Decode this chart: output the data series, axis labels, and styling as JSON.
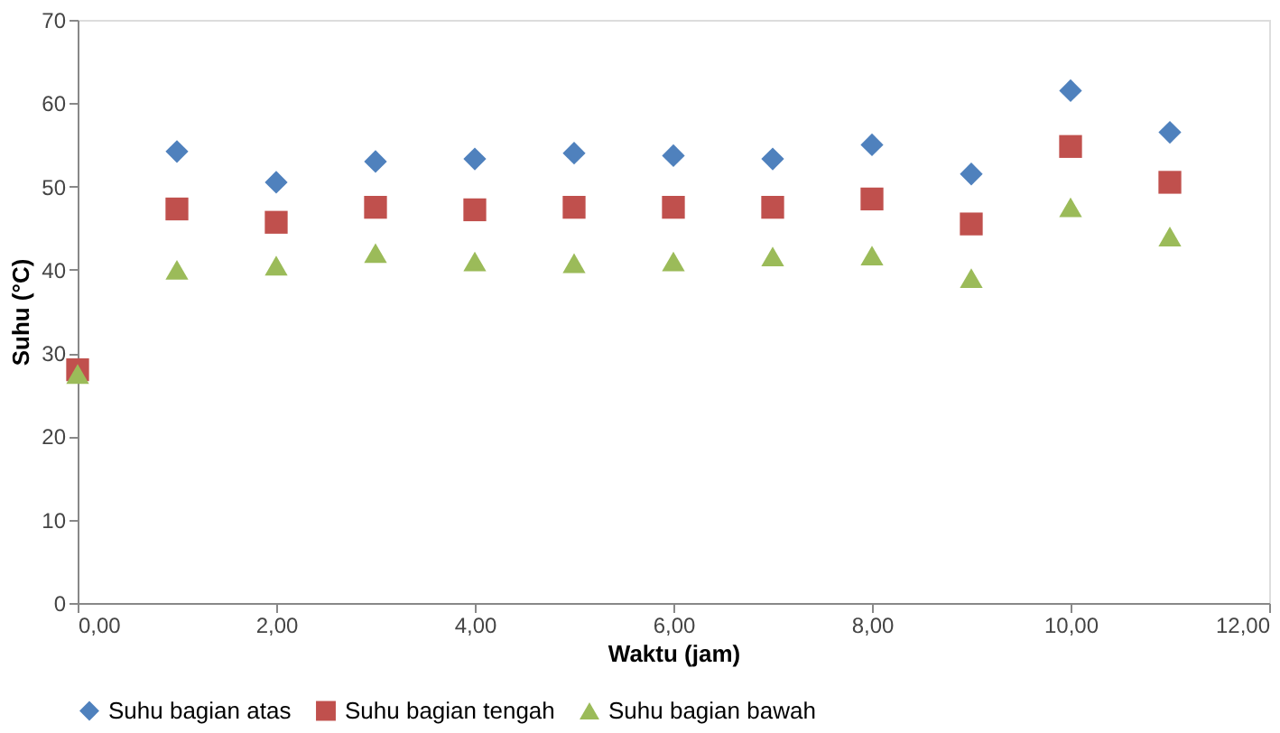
{
  "chart_data": {
    "type": "scatter",
    "xlabel": "Waktu (jam)",
    "ylabel": "Suhu (°C)",
    "x": [
      0,
      1,
      2,
      3,
      4,
      5,
      6,
      7,
      8,
      9,
      10,
      11
    ],
    "series": [
      {
        "name": "Suhu bagian atas",
        "color": "#4f81bd",
        "marker": "diamond",
        "values": [
          null,
          54.2,
          50.5,
          53,
          53.3,
          54,
          53.7,
          53.3,
          55,
          51.5,
          61.5,
          56.5
        ]
      },
      {
        "name": "Suhu bagian tengah",
        "color": "#c0504d",
        "marker": "square",
        "values": [
          28,
          47.3,
          45.7,
          47.5,
          47.2,
          47.5,
          47.5,
          47.5,
          48.5,
          45.5,
          54.8,
          50.5
        ]
      },
      {
        "name": "Suhu bagian bawah",
        "color": "#9bbb59",
        "marker": "triangle",
        "values": [
          27.5,
          40,
          40.5,
          42,
          41,
          40.8,
          41,
          41.6,
          41.7,
          39,
          47.5,
          44
        ]
      }
    ],
    "xlim": [
      0,
      12
    ],
    "xticks": [
      {
        "value": 0,
        "label": "0,00"
      },
      {
        "value": 2,
        "label": "2,00"
      },
      {
        "value": 4,
        "label": "4,00"
      },
      {
        "value": 6,
        "label": "6,00"
      },
      {
        "value": 8,
        "label": "8,00"
      },
      {
        "value": 10,
        "label": "10,00"
      },
      {
        "value": 12,
        "label": "12,00"
      }
    ],
    "ylim": [
      0,
      70
    ],
    "yticks": [
      0,
      10,
      20,
      30,
      40,
      50,
      60,
      70
    ],
    "grid": false,
    "legend": "bottom"
  }
}
